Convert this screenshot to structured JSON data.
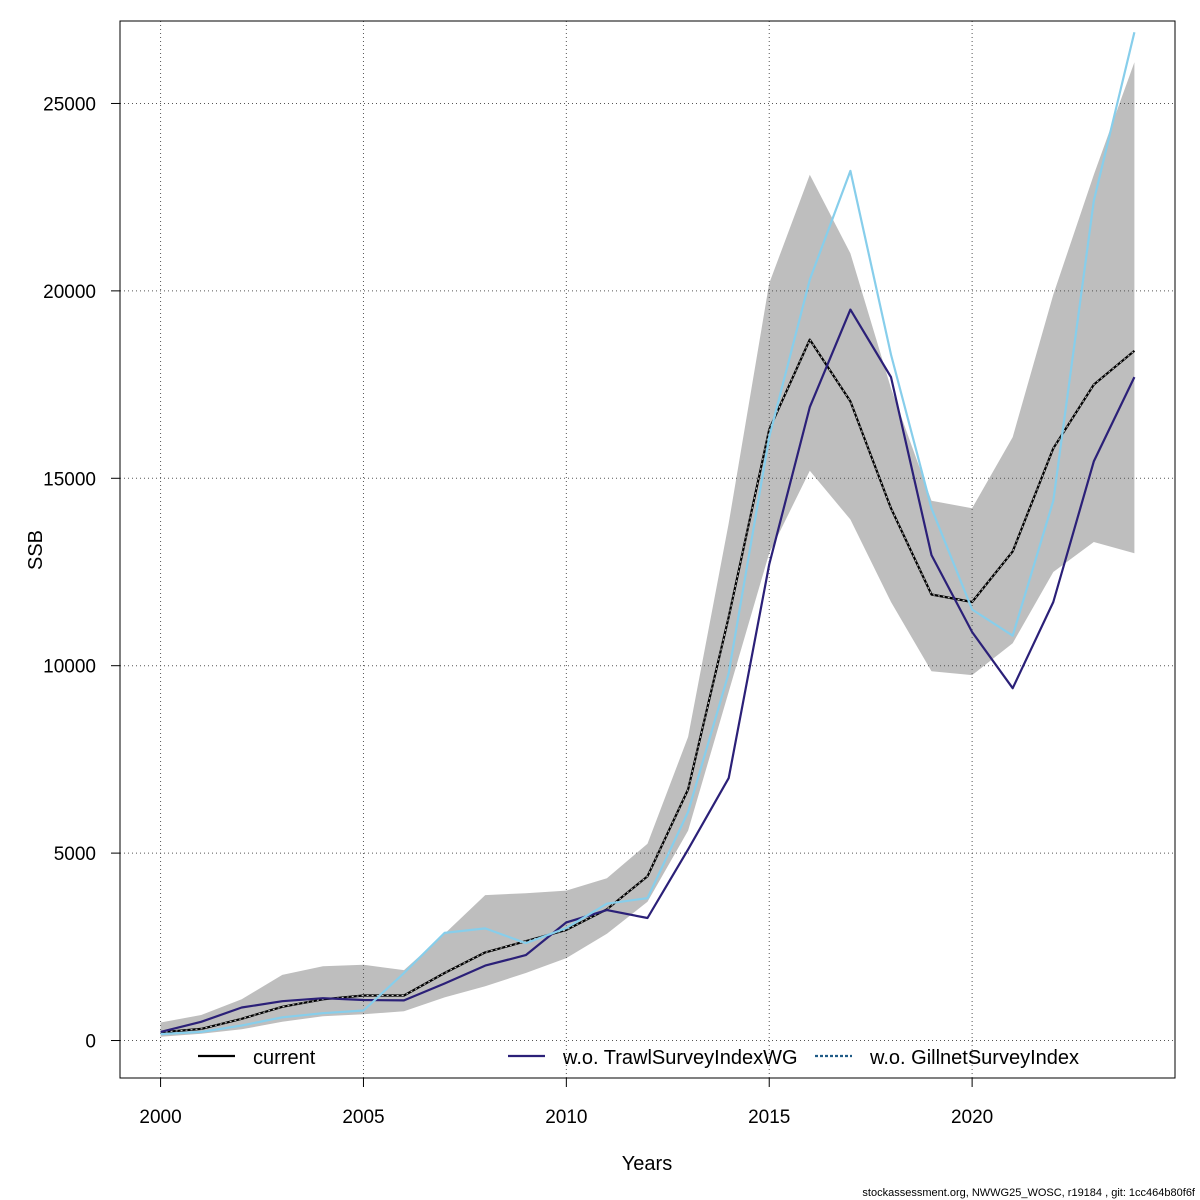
{
  "chart_data": {
    "type": "line",
    "title": "",
    "xlabel": "Years",
    "ylabel": "SSB",
    "xlim": [
      1999,
      2025
    ],
    "ylim": [
      -1000,
      27200
    ],
    "x_ticks": [
      2000,
      2005,
      2010,
      2015,
      2020
    ],
    "x_tick_labels": [
      "2000",
      "2005",
      "2010",
      "2015",
      "2020"
    ],
    "y_ticks": [
      0,
      5000,
      10000,
      15000,
      20000,
      25000
    ],
    "y_tick_labels": [
      "0",
      "5000",
      "10000",
      "15000",
      "20000",
      "25000"
    ],
    "grid": true,
    "legend_position": "bottom",
    "x": [
      2000,
      2001,
      2002,
      2003,
      2004,
      2005,
      2006,
      2007,
      2008,
      2009,
      2010,
      2011,
      2012,
      2013,
      2014,
      2015,
      2016,
      2017,
      2018,
      2019,
      2020,
      2021,
      2022,
      2023,
      2024
    ],
    "band": {
      "name": "current confidence interval",
      "color": "#bebebe",
      "lower": [
        100,
        180,
        300,
        500,
        650,
        700,
        780,
        1150,
        1450,
        1800,
        2200,
        2850,
        3700,
        5600,
        9300,
        13000,
        15200,
        13900,
        11700,
        9850,
        9750,
        10600,
        12500,
        13300,
        13000
      ],
      "upper": [
        480,
        680,
        1100,
        1750,
        1980,
        2020,
        1880,
        2850,
        3880,
        3930,
        4000,
        4330,
        5250,
        8100,
        13800,
        20200,
        23100,
        21000,
        17400,
        14400,
        14200,
        16100,
        19900,
        23100,
        26100
      ]
    },
    "series": [
      {
        "name": "current",
        "color": "#000000",
        "style": "solid",
        "values": [
          220,
          310,
          580,
          900,
          1100,
          1200,
          1200,
          1800,
          2350,
          2650,
          2950,
          3500,
          4380,
          6700,
          11300,
          16300,
          18700,
          17050,
          14200,
          11900,
          11700,
          13050,
          15800,
          17500,
          18400
        ]
      },
      {
        "name": "w.o. TrawlSurveyIndexWG",
        "color": "#2b2078",
        "style": "solid",
        "values": [
          230,
          500,
          880,
          1050,
          1130,
          1080,
          1070,
          1520,
          2000,
          2280,
          3150,
          3480,
          3270,
          5100,
          7000,
          12700,
          16900,
          19500,
          17700,
          12950,
          10900,
          9400,
          11700,
          15450,
          17700
        ]
      },
      {
        "name": "w.o. GillnetSurveyIndex",
        "color": "#87ceeb",
        "style": "dotted",
        "values": [
          170,
          230,
          400,
          620,
          730,
          800,
          1800,
          2870,
          2990,
          2600,
          3000,
          3650,
          3800,
          6100,
          9800,
          16100,
          20300,
          23200,
          18300,
          14200,
          11500,
          10800,
          14400,
          22400,
          26900
        ]
      }
    ]
  },
  "footer": {
    "text": "stockassessment.org, NWWG25_WOSC, r19184 , git: 1cc464b80f6f"
  }
}
